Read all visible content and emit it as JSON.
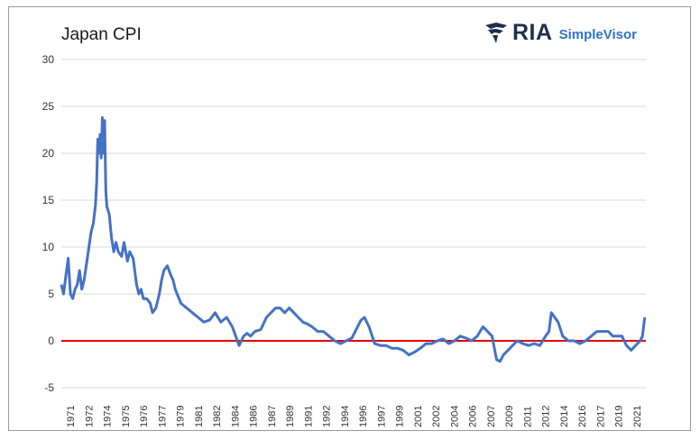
{
  "title": "Japan CPI",
  "logo": {
    "brand": "RIA",
    "sub": "SimpleVisor",
    "brand_color": "#1d2f4f",
    "sub_color": "#2f73c8"
  },
  "colors": {
    "series": "#4472c4",
    "zero_line": "#e00000",
    "grid": "#d9d9d9"
  },
  "chart_data": {
    "type": "line",
    "title": "Japan CPI",
    "ylim": [
      -5,
      30
    ],
    "yticks": [
      -5,
      0,
      5,
      10,
      15,
      20,
      25,
      30
    ],
    "grid": true,
    "xticks": [
      "1971",
      "1972",
      "1974",
      "1975",
      "1976",
      "1977",
      "1979",
      "1981",
      "1982",
      "1984",
      "1986",
      "1987",
      "1989",
      "1991",
      "1992",
      "1994",
      "1996",
      "1997",
      "1999",
      "2001",
      "2002",
      "2004",
      "2006",
      "2007",
      "2009",
      "2011",
      "2012",
      "2014",
      "2016",
      "2017",
      "2019",
      "2021"
    ],
    "reference_line": 0,
    "series": [
      {
        "x": [
          1971.0,
          1971.2,
          1971.4,
          1971.6,
          1971.8,
          1972.0,
          1972.2,
          1972.4,
          1972.6,
          1972.8,
          1973.0,
          1973.3,
          1973.6,
          1973.8,
          1974.0,
          1974.1,
          1974.2,
          1974.3,
          1974.4,
          1974.5,
          1974.6,
          1974.7,
          1974.8,
          1974.9,
          1975.0,
          1975.2,
          1975.4,
          1975.6,
          1975.8,
          1976.0,
          1976.3,
          1976.5,
          1976.8,
          1977.0,
          1977.3,
          1977.6,
          1977.8,
          1978.0,
          1978.2,
          1978.5,
          1978.8,
          1979.0,
          1979.3,
          1979.6,
          1979.8,
          1980.0,
          1980.3,
          1980.6,
          1980.8,
          1981.0,
          1981.5,
          1982.0,
          1982.5,
          1983.0,
          1983.5,
          1984.0,
          1984.5,
          1985.0,
          1985.5,
          1986.0,
          1986.3,
          1986.6,
          1987.0,
          1987.3,
          1987.6,
          1988.0,
          1988.5,
          1989.0,
          1989.4,
          1989.8,
          1990.2,
          1990.6,
          1991.0,
          1991.4,
          1991.8,
          1992.2,
          1992.6,
          1993.0,
          1993.5,
          1994.0,
          1994.5,
          1995.0,
          1995.5,
          1996.0,
          1996.5,
          1997.0,
          1997.3,
          1997.6,
          1998.0,
          1998.5,
          1999.0,
          1999.5,
          2000.0,
          2000.5,
          2001.0,
          2001.5,
          2002.0,
          2002.5,
          2003.0,
          2003.5,
          2004.0,
          2004.5,
          2005.0,
          2005.5,
          2006.0,
          2006.5,
          2007.0,
          2007.5,
          2008.0,
          2008.4,
          2008.8,
          2009.2,
          2009.5,
          2009.8,
          2010.2,
          2010.6,
          2011.0,
          2011.5,
          2012.0,
          2012.5,
          2013.0,
          2013.5,
          2013.8,
          2014.0,
          2014.3,
          2014.6,
          2015.0,
          2015.5,
          2016.0,
          2016.5,
          2017.0,
          2017.5,
          2018.0,
          2018.5,
          2019.0,
          2019.4,
          2019.8,
          2020.2,
          2020.6,
          2021.0,
          2021.4,
          2021.8,
          2022.0,
          2022.2
        ],
        "values": [
          6.0,
          5.0,
          7.0,
          8.8,
          5.0,
          4.5,
          5.5,
          6.0,
          7.5,
          5.5,
          6.5,
          9.0,
          11.5,
          12.5,
          14.5,
          17.0,
          21.5,
          20.0,
          22.0,
          19.5,
          23.8,
          20.0,
          23.5,
          16.0,
          14.3,
          13.5,
          11.0,
          9.5,
          10.5,
          9.5,
          9.0,
          10.5,
          8.5,
          9.5,
          8.8,
          6.0,
          5.0,
          5.5,
          4.5,
          4.5,
          4.0,
          3.0,
          3.5,
          5.0,
          6.5,
          7.5,
          8.0,
          7.0,
          6.5,
          5.5,
          4.0,
          3.5,
          3.0,
          2.5,
          2.0,
          2.2,
          3.0,
          2.0,
          2.5,
          1.5,
          0.5,
          -0.5,
          0.5,
          0.8,
          0.5,
          1.0,
          1.2,
          2.5,
          3.0,
          3.5,
          3.5,
          3.0,
          3.5,
          3.0,
          2.5,
          2.0,
          1.8,
          1.5,
          1.0,
          1.0,
          0.5,
          0.0,
          -0.3,
          0.0,
          0.3,
          1.5,
          2.2,
          2.5,
          1.5,
          -0.3,
          -0.5,
          -0.5,
          -0.8,
          -0.8,
          -1.0,
          -1.5,
          -1.2,
          -0.8,
          -0.3,
          -0.3,
          0.0,
          0.2,
          -0.3,
          0.0,
          0.5,
          0.3,
          0.0,
          0.5,
          1.5,
          1.0,
          0.5,
          -2.0,
          -2.2,
          -1.5,
          -1.0,
          -0.5,
          0.0,
          -0.3,
          -0.5,
          -0.3,
          -0.5,
          0.5,
          1.0,
          3.0,
          2.5,
          2.0,
          0.5,
          0.0,
          0.0,
          -0.3,
          0.0,
          0.5,
          1.0,
          1.0,
          1.0,
          0.5,
          0.5,
          0.5,
          -0.5,
          -1.0,
          -0.5,
          0.0,
          0.5,
          2.5
        ]
      }
    ]
  }
}
